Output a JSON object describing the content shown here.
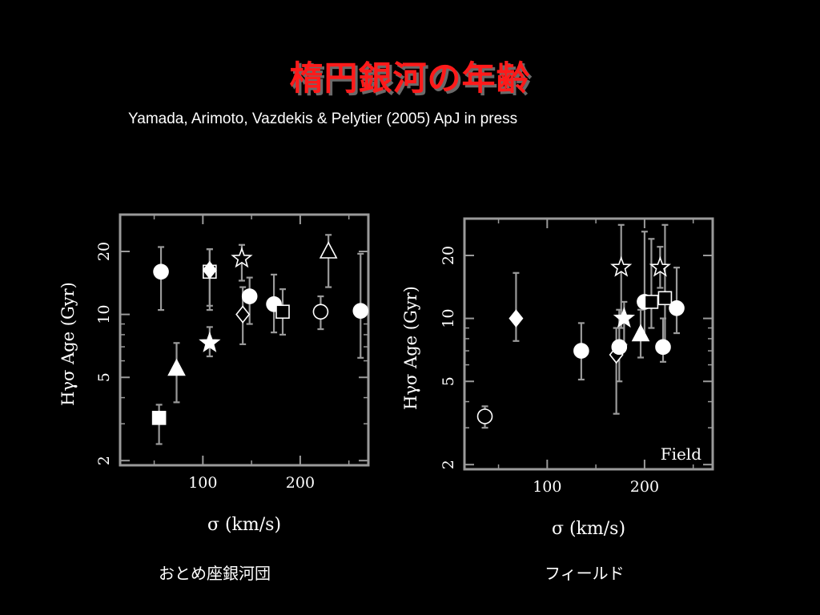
{
  "slide": {
    "title": "楕円銀河の年齢",
    "subtitle": "Yamada, Arimoto, Vazdekis & Pelytier (2005) ApJ in press"
  },
  "colors": {
    "background": "#000000",
    "title": "#ff1a1a",
    "marks": "#ffffff",
    "frame": "#9a9a9a",
    "errorbar": "#9a9a9a"
  },
  "chart_data": [
    {
      "type": "scatter",
      "caption": "おとめ座銀河団",
      "xlabel": "σ (km/s)",
      "ylabel": "Hγσ Age (Gyr)",
      "y_scale": "log",
      "xlim": [
        15,
        270
      ],
      "ylim": [
        1.9,
        30
      ],
      "x_ticks": [
        100,
        200
      ],
      "y_ticks": [
        2,
        5,
        10,
        20
      ],
      "annotation": "",
      "points": [
        {
          "x": 57,
          "y": 16,
          "y_lo": 10.5,
          "y_hi": 21,
          "marker": "circle-filled"
        },
        {
          "x": 55,
          "y": 3.2,
          "y_lo": 2.4,
          "y_hi": 3.7,
          "marker": "square-filled"
        },
        {
          "x": 73,
          "y": 5.5,
          "y_lo": 3.8,
          "y_hi": 7.3,
          "marker": "triangle-filled"
        },
        {
          "x": 107,
          "y": 16,
          "y_lo": 10.5,
          "y_hi": 20.5,
          "marker": "square-open"
        },
        {
          "x": 107,
          "y": 16.3,
          "y_lo": 11,
          "y_hi": 20.5,
          "marker": "diamond-filled"
        },
        {
          "x": 107,
          "y": 7.3,
          "y_lo": 6.3,
          "y_hi": 8.7,
          "marker": "star-filled"
        },
        {
          "x": 140,
          "y": 18.5,
          "y_lo": 14.5,
          "y_hi": 21.5,
          "marker": "star-open"
        },
        {
          "x": 141,
          "y": 10,
          "y_lo": 7.2,
          "y_hi": 13.5,
          "marker": "diamond-open"
        },
        {
          "x": 148,
          "y": 12.2,
          "y_lo": 9,
          "y_hi": 15,
          "marker": "circle-filled"
        },
        {
          "x": 173,
          "y": 11.2,
          "y_lo": 8.2,
          "y_hi": 15.5,
          "marker": "circle-filled"
        },
        {
          "x": 182,
          "y": 10.3,
          "y_lo": 8,
          "y_hi": 13.2,
          "marker": "square-open"
        },
        {
          "x": 221,
          "y": 10.3,
          "y_lo": 8.5,
          "y_hi": 12.2,
          "marker": "circle-open"
        },
        {
          "x": 229,
          "y": 20,
          "y_lo": 13.5,
          "y_hi": 24,
          "marker": "triangle-open"
        },
        {
          "x": 262,
          "y": 10.4,
          "y_lo": 6.2,
          "y_hi": 19.5,
          "marker": "circle-filled"
        }
      ]
    },
    {
      "type": "scatter",
      "caption": "フィールド",
      "xlabel": "σ (km/s)",
      "ylabel": "Hγσ Age (Gyr)",
      "y_scale": "log",
      "xlim": [
        15,
        270
      ],
      "ylim": [
        1.9,
        30
      ],
      "x_ticks": [
        100,
        200
      ],
      "y_ticks": [
        2,
        5,
        10,
        20
      ],
      "annotation": "Field",
      "points": [
        {
          "x": 36,
          "y": 3.4,
          "y_lo": 3.0,
          "y_hi": 3.8,
          "marker": "circle-open"
        },
        {
          "x": 68,
          "y": 10,
          "y_lo": 7.8,
          "y_hi": 16.5,
          "marker": "diamond-filled"
        },
        {
          "x": 135,
          "y": 7,
          "y_lo": 5.1,
          "y_hi": 9.5,
          "marker": "circle-filled"
        },
        {
          "x": 171,
          "y": 6.7,
          "y_lo": 3.5,
          "y_hi": 9,
          "marker": "diamond-open"
        },
        {
          "x": 174,
          "y": 7.3,
          "y_lo": 5,
          "y_hi": 11,
          "marker": "circle-filled"
        },
        {
          "x": 176,
          "y": 17.5,
          "y_lo": 9,
          "y_hi": 28,
          "marker": "star-open"
        },
        {
          "x": 179,
          "y": 10,
          "y_lo": 7.5,
          "y_hi": 12,
          "marker": "star-filled"
        },
        {
          "x": 196,
          "y": 8.4,
          "y_lo": 6.5,
          "y_hi": 11,
          "marker": "triangle-filled"
        },
        {
          "x": 200,
          "y": 12,
          "y_lo": 8,
          "y_hi": 26,
          "marker": "circle-filled"
        },
        {
          "x": 207,
          "y": 12,
          "y_lo": 9,
          "y_hi": 24,
          "marker": "square-open"
        },
        {
          "x": 216,
          "y": 17.5,
          "y_lo": 14,
          "y_hi": 22,
          "marker": "star-open"
        },
        {
          "x": 219,
          "y": 7.3,
          "y_lo": 6.2,
          "y_hi": 10,
          "marker": "circle-filled"
        },
        {
          "x": 221,
          "y": 12.5,
          "y_lo": 7,
          "y_hi": 28,
          "marker": "square-open"
        },
        {
          "x": 233,
          "y": 11.2,
          "y_lo": 8.5,
          "y_hi": 17.5,
          "marker": "circle-filled"
        }
      ]
    }
  ]
}
